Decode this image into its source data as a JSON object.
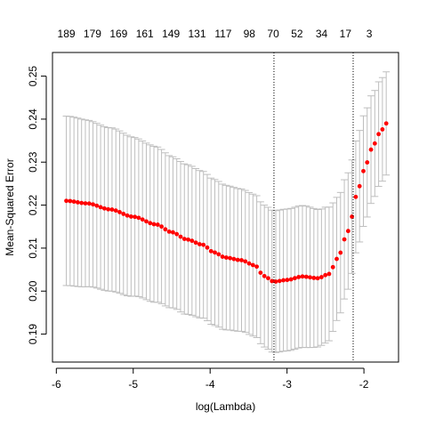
{
  "chart_data": {
    "type": "scatter",
    "xlabel": "log(Lambda)",
    "ylabel": "Mean-Squared Error",
    "xlim": [
      -6.05,
      -1.55
    ],
    "ylim": [
      0.1835,
      0.2555
    ],
    "x_ticks": [
      -6,
      -5,
      -4,
      -3,
      -2
    ],
    "y_ticks": [
      0.19,
      0.2,
      0.21,
      0.22,
      0.23,
      0.24,
      0.25
    ],
    "grid": false,
    "top_axis_labels": [
      {
        "x": -5.87,
        "label": "189"
      },
      {
        "x": -5.53,
        "label": "179"
      },
      {
        "x": -5.19,
        "label": "169"
      },
      {
        "x": -4.85,
        "label": "161"
      },
      {
        "x": -4.51,
        "label": "149"
      },
      {
        "x": -4.17,
        "label": "131"
      },
      {
        "x": -3.83,
        "label": "117"
      },
      {
        "x": -3.49,
        "label": "98"
      },
      {
        "x": -3.18,
        "label": "70"
      },
      {
        "x": -2.87,
        "label": "52"
      },
      {
        "x": -2.55,
        "label": "34"
      },
      {
        "x": -2.24,
        "label": "17"
      },
      {
        "x": -1.93,
        "label": "3"
      }
    ],
    "vlines": [
      -3.17,
      -2.14
    ],
    "x_range": [
      -5.87,
      -1.71
    ],
    "points_count": 85,
    "y_knots": [
      [
        -5.87,
        0.221
      ],
      [
        -5.6,
        0.2204
      ],
      [
        -5.3,
        0.219
      ],
      [
        -5.0,
        0.2173
      ],
      [
        -4.7,
        0.2155
      ],
      [
        -4.5,
        0.2137
      ],
      [
        -4.3,
        0.212
      ],
      [
        -4.1,
        0.2108
      ],
      [
        -3.95,
        0.209
      ],
      [
        -3.8,
        0.2078
      ],
      [
        -3.6,
        0.2072
      ],
      [
        -3.42,
        0.206
      ],
      [
        -3.3,
        0.2035
      ],
      [
        -3.17,
        0.2022
      ],
      [
        -3.0,
        0.2026
      ],
      [
        -2.8,
        0.2034
      ],
      [
        -2.6,
        0.203
      ],
      [
        -2.45,
        0.204
      ],
      [
        -2.35,
        0.2075
      ],
      [
        -2.2,
        0.214
      ],
      [
        -2.1,
        0.222
      ],
      [
        -2.0,
        0.228
      ],
      [
        -1.9,
        0.233
      ],
      [
        -1.8,
        0.2366
      ],
      [
        -1.71,
        0.239
      ]
    ],
    "se_knots": [
      [
        -5.87,
        0.0197
      ],
      [
        -5.3,
        0.019
      ],
      [
        -4.8,
        0.0182
      ],
      [
        -4.4,
        0.0175
      ],
      [
        -4.0,
        0.017
      ],
      [
        -3.5,
        0.0165
      ],
      [
        -3.17,
        0.0165
      ],
      [
        -2.8,
        0.0165
      ],
      [
        -2.5,
        0.0158
      ],
      [
        -2.3,
        0.014
      ],
      [
        -2.1,
        0.013
      ],
      [
        -1.71,
        0.012
      ]
    ],
    "point_color": "#ff0000",
    "errorbar_color": "#bebebe"
  }
}
